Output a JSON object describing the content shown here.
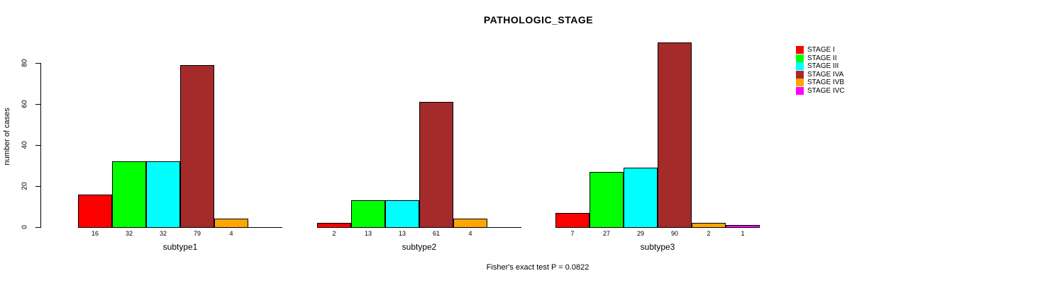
{
  "chart_data": {
    "type": "bar",
    "title": "PATHOLOGIC_STAGE",
    "xlabel": "",
    "ylabel": "number of cases",
    "ylim": [
      0,
      80
    ],
    "yticks": [
      0,
      20,
      40,
      60,
      80
    ],
    "grid": false,
    "legend_position": "right",
    "legend": [
      {
        "label": "STAGE I",
        "color": "#FF0000"
      },
      {
        "label": "STAGE II",
        "color": "#00FF00"
      },
      {
        "label": "STAGE III",
        "color": "#00FFFF"
      },
      {
        "label": "STAGE IVA",
        "color": "#A52A2A"
      },
      {
        "label": "STAGE IVB",
        "color": "#FFA500"
      },
      {
        "label": "STAGE IVC",
        "color": "#FF00FF"
      }
    ],
    "groups": [
      {
        "label": "subtype1",
        "values": [
          16,
          32,
          32,
          79,
          4,
          null
        ]
      },
      {
        "label": "subtype2",
        "values": [
          2,
          13,
          13,
          61,
          4,
          null
        ]
      },
      {
        "label": "subtype3",
        "values": [
          7,
          27,
          29,
          90,
          2,
          1
        ]
      }
    ],
    "annotation": "Fisher's exact test P = 0.0822"
  }
}
